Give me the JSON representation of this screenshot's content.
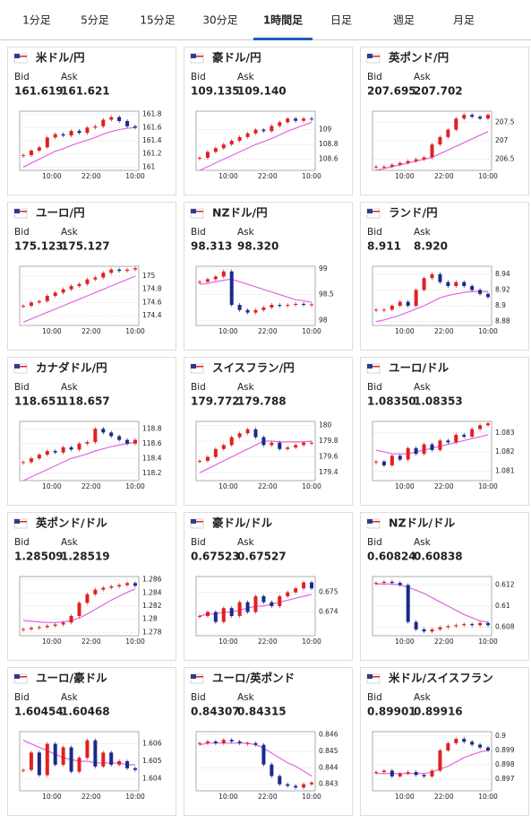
{
  "tabs": {
    "items": [
      "1分足",
      "5分足",
      "15分足",
      "30分足",
      "1時間足",
      "日足",
      "週足",
      "月足"
    ],
    "active": 4
  },
  "labels": {
    "bid": "Bid",
    "ask": "Ask"
  },
  "time_labels": [
    "10:00",
    "22:00",
    "10:00"
  ],
  "cards": [
    {
      "title": "米ドル/円",
      "color": "#6b2c91",
      "bid": "161.619",
      "ask": "161.621",
      "chart": {
        "ylim": [
          160.95,
          161.85
        ],
        "yticks": [
          161,
          161.2,
          161.4,
          161.6,
          161.8
        ],
        "closes": [
          161.18,
          161.25,
          161.3,
          161.45,
          161.5,
          161.48,
          161.55,
          161.52,
          161.6,
          161.62,
          161.72,
          161.76,
          161.7,
          161.62,
          161.6
        ],
        "ma": [
          161.0,
          161.06,
          161.12,
          161.18,
          161.24,
          161.28,
          161.33,
          161.37,
          161.41,
          161.45,
          161.5,
          161.54,
          161.57,
          161.59,
          161.6
        ]
      }
    },
    {
      "title": "豪ドル/円",
      "color": "#6b2c91",
      "bid": "109.135",
      "ask": "109.140",
      "chart": {
        "ylim": [
          108.45,
          109.25
        ],
        "yticks": [
          108.6,
          108.8,
          109
        ],
        "closes": [
          108.62,
          108.7,
          108.75,
          108.8,
          108.85,
          108.9,
          108.95,
          109.0,
          108.98,
          109.05,
          109.1,
          109.15,
          109.12,
          109.15,
          109.14
        ],
        "ma": [
          108.45,
          108.5,
          108.55,
          108.6,
          108.65,
          108.7,
          108.75,
          108.8,
          108.84,
          108.88,
          108.93,
          108.98,
          109.02,
          109.06,
          109.1
        ]
      }
    },
    {
      "title": "英ポンド/円",
      "color": "#6b2c91",
      "bid": "207.695",
      "ask": "207.702",
      "chart": {
        "ylim": [
          206.2,
          207.8
        ],
        "yticks": [
          206.5,
          207,
          207.5
        ],
        "closes": [
          206.3,
          206.3,
          206.35,
          206.4,
          206.45,
          206.5,
          206.55,
          206.9,
          207.1,
          207.3,
          207.6,
          207.7,
          207.65,
          207.6,
          207.7
        ],
        "ma": [
          206.2,
          206.25,
          206.3,
          206.35,
          206.4,
          206.45,
          206.5,
          206.55,
          206.65,
          206.75,
          206.85,
          206.95,
          207.05,
          207.15,
          207.25
        ]
      }
    },
    {
      "title": "ユーロ/円",
      "color": "#6b2c91",
      "bid": "175.123",
      "ask": "175.127",
      "chart": {
        "ylim": [
          174.25,
          175.15
        ],
        "yticks": [
          174.4,
          174.6,
          174.8,
          175
        ],
        "closes": [
          174.55,
          174.6,
          174.62,
          174.7,
          174.75,
          174.8,
          174.85,
          174.88,
          174.95,
          174.98,
          175.05,
          175.1,
          175.08,
          175.1,
          175.12
        ],
        "ma": [
          174.3,
          174.35,
          174.4,
          174.45,
          174.5,
          174.55,
          174.6,
          174.65,
          174.7,
          174.75,
          174.8,
          174.85,
          174.9,
          174.95,
          175.0
        ]
      }
    },
    {
      "title": "NZドル/円",
      "color": "#6b2c91",
      "bid": "98.313",
      "ask": "98.320",
      "chart": {
        "ylim": [
          97.9,
          99.05
        ],
        "yticks": [
          98,
          98.5,
          99
        ],
        "closes": [
          98.75,
          98.8,
          98.85,
          98.95,
          98.3,
          98.2,
          98.15,
          98.2,
          98.25,
          98.3,
          98.28,
          98.3,
          98.32,
          98.3,
          98.31
        ],
        "ma": [
          98.7,
          98.72,
          98.75,
          98.78,
          98.8,
          98.75,
          98.7,
          98.65,
          98.6,
          98.55,
          98.5,
          98.45,
          98.4,
          98.38,
          98.35
        ]
      }
    },
    {
      "title": "ランド/円",
      "color": "#6b2c91",
      "bid": "8.911",
      "ask": "8.920",
      "chart": {
        "ylim": [
          8.875,
          8.95
        ],
        "yticks": [
          8.88,
          8.9,
          8.92,
          8.94
        ],
        "closes": [
          8.895,
          8.895,
          8.9,
          8.905,
          8.9,
          8.92,
          8.935,
          8.94,
          8.93,
          8.925,
          8.93,
          8.925,
          8.92,
          8.915,
          8.911
        ],
        "ma": [
          8.88,
          8.882,
          8.885,
          8.888,
          8.892,
          8.896,
          8.9,
          8.905,
          8.91,
          8.913,
          8.915,
          8.917,
          8.918,
          8.918,
          8.918
        ]
      }
    },
    {
      "title": "カナダドル/円",
      "color": "#6b2c91",
      "bid": "118.651",
      "ask": "118.657",
      "chart": {
        "ylim": [
          118.1,
          118.9
        ],
        "yticks": [
          118.2,
          118.4,
          118.6,
          118.8
        ],
        "closes": [
          118.35,
          118.4,
          118.45,
          118.5,
          118.48,
          118.55,
          118.52,
          118.6,
          118.62,
          118.8,
          118.75,
          118.7,
          118.65,
          118.6,
          118.65
        ],
        "ma": [
          118.1,
          118.15,
          118.2,
          118.25,
          118.3,
          118.35,
          118.4,
          118.43,
          118.46,
          118.5,
          118.53,
          118.56,
          118.58,
          118.6,
          118.62
        ]
      }
    },
    {
      "title": "スイスフラン/円",
      "color": "#6b2c91",
      "bid": "179.772",
      "ask": "179.788",
      "chart": {
        "ylim": [
          179.3,
          180.05
        ],
        "yticks": [
          179.4,
          179.6,
          179.8,
          180
        ],
        "closes": [
          179.55,
          179.6,
          179.7,
          179.75,
          179.85,
          179.9,
          179.95,
          179.85,
          179.75,
          179.78,
          179.7,
          179.72,
          179.75,
          179.78,
          179.78
        ],
        "ma": [
          179.4,
          179.45,
          179.5,
          179.55,
          179.6,
          179.65,
          179.7,
          179.75,
          179.8,
          179.8,
          179.79,
          179.79,
          179.79,
          179.79,
          179.8
        ]
      }
    },
    {
      "title": "ユーロ/ドル",
      "color": "#1f3c88",
      "bid": "1.08350",
      "ask": "1.08353",
      "chart": {
        "ylim": [
          1.0805,
          1.0836
        ],
        "yticks": [
          1.081,
          1.082,
          1.083
        ],
        "closes": [
          1.0815,
          1.0813,
          1.0818,
          1.0816,
          1.0822,
          1.0819,
          1.0824,
          1.0821,
          1.0826,
          1.0825,
          1.0829,
          1.0828,
          1.0832,
          1.0834,
          1.0835
        ],
        "ma": [
          1.0821,
          1.082,
          1.0819,
          1.0819,
          1.0819,
          1.082,
          1.0821,
          1.0822,
          1.0823,
          1.0824,
          1.0825,
          1.0826,
          1.0827,
          1.0828,
          1.0829
        ]
      }
    },
    {
      "title": "英ポンド/ドル",
      "color": "#1f3c88",
      "bid": "1.28509",
      "ask": "1.28519",
      "chart": {
        "ylim": [
          1.2775,
          1.2865
        ],
        "yticks": [
          1.278,
          1.28,
          1.282,
          1.284,
          1.286
        ],
        "closes": [
          1.2785,
          1.2787,
          1.2788,
          1.279,
          1.2792,
          1.2795,
          1.2805,
          1.2825,
          1.2838,
          1.2845,
          1.2848,
          1.285,
          1.2852,
          1.2855,
          1.2851
        ],
        "ma": [
          1.2798,
          1.2797,
          1.2796,
          1.2795,
          1.2795,
          1.2796,
          1.2798,
          1.2802,
          1.2808,
          1.2815,
          1.2822,
          1.2829,
          1.2835,
          1.2841,
          1.2846
        ]
      }
    },
    {
      "title": "豪ドル/ドル",
      "color": "#1f3c88",
      "bid": "0.67523",
      "ask": "0.67527",
      "chart": {
        "ylim": [
          0.6728,
          0.6758
        ],
        "yticks": [
          0.674,
          0.675
        ],
        "closes": [
          0.6738,
          0.674,
          0.6735,
          0.6742,
          0.6738,
          0.6745,
          0.674,
          0.6748,
          0.6745,
          0.6743,
          0.6748,
          0.675,
          0.6752,
          0.6755,
          0.6752
        ],
        "ma": [
          0.6738,
          0.6739,
          0.6739,
          0.674,
          0.674,
          0.6741,
          0.6742,
          0.6743,
          0.6743,
          0.6744,
          0.6745,
          0.6746,
          0.6747,
          0.6748,
          0.6749
        ]
      }
    },
    {
      "title": "NZドル/ドル",
      "color": "#1f3c88",
      "bid": "0.60824",
      "ask": "0.60838",
      "chart": {
        "ylim": [
          0.6072,
          0.6128
        ],
        "yticks": [
          0.608,
          0.61,
          0.612
        ],
        "closes": [
          0.6122,
          0.6123,
          0.6122,
          0.612,
          0.6085,
          0.6078,
          0.6076,
          0.6078,
          0.608,
          0.6081,
          0.6082,
          0.6083,
          0.6082,
          0.6084,
          0.6082
        ],
        "ma": [
          0.6121,
          0.6121,
          0.6121,
          0.612,
          0.6118,
          0.6115,
          0.6112,
          0.6108,
          0.6104,
          0.61,
          0.6096,
          0.6092,
          0.6089,
          0.6086,
          0.6085
        ]
      }
    },
    {
      "title": "ユーロ/豪ドル",
      "color": "#1f3c88",
      "bid": "1.60454",
      "ask": "1.60468",
      "chart": {
        "ylim": [
          1.6033,
          1.6067
        ],
        "yticks": [
          1.604,
          1.605,
          1.606
        ],
        "closes": [
          1.6045,
          1.6055,
          1.6042,
          1.606,
          1.6048,
          1.6058,
          1.6044,
          1.6052,
          1.6062,
          1.6047,
          1.6055,
          1.6048,
          1.605,
          1.6046,
          1.6045
        ],
        "ma": [
          1.6062,
          1.606,
          1.6058,
          1.6056,
          1.6054,
          1.6052,
          1.6051,
          1.605,
          1.605,
          1.6049,
          1.6049,
          1.6049,
          1.6049,
          1.6048,
          1.6048
        ]
      }
    },
    {
      "title": "ユーロ/英ポンド",
      "color": "#1f3c88",
      "bid": "0.84307",
      "ask": "0.84315",
      "chart": {
        "ylim": [
          0.8426,
          0.8462
        ],
        "yticks": [
          0.843,
          0.844,
          0.845,
          0.846
        ],
        "closes": [
          0.8455,
          0.8456,
          0.8455,
          0.8457,
          0.8456,
          0.8455,
          0.8455,
          0.8454,
          0.8442,
          0.8435,
          0.843,
          0.8429,
          0.8428,
          0.843,
          0.8431
        ],
        "ma": [
          0.8454,
          0.8455,
          0.8455,
          0.8455,
          0.8455,
          0.8455,
          0.8455,
          0.8454,
          0.8452,
          0.8449,
          0.8446,
          0.8443,
          0.8441,
          0.8438,
          0.8435
        ]
      }
    },
    {
      "title": "米ドル/スイスフラン",
      "color": "#1f3c88",
      "bid": "0.89901",
      "ask": "0.89916",
      "chart": {
        "ylim": [
          0.8962,
          0.9003
        ],
        "yticks": [
          0.897,
          0.898,
          0.899,
          0.9
        ],
        "closes": [
          0.8975,
          0.8976,
          0.8972,
          0.8974,
          0.8975,
          0.8973,
          0.8972,
          0.8976,
          0.899,
          0.8995,
          0.8998,
          0.8996,
          0.8994,
          0.8992,
          0.899
        ],
        "ma": [
          0.8974,
          0.8974,
          0.8974,
          0.8974,
          0.8974,
          0.8974,
          0.8974,
          0.8975,
          0.8977,
          0.8979,
          0.8982,
          0.8985,
          0.8987,
          0.8989,
          0.899
        ]
      }
    }
  ]
}
